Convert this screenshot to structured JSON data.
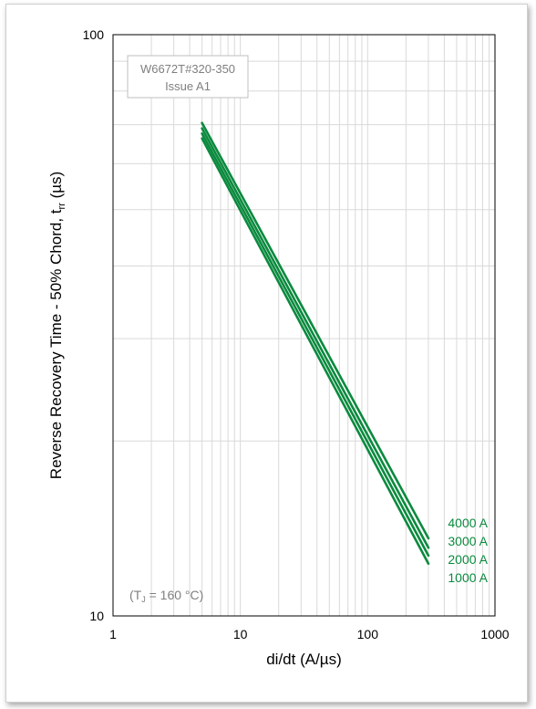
{
  "chart_data": {
    "type": "line",
    "x_scale": "log",
    "y_scale": "log",
    "xlim": [
      1,
      1000
    ],
    "ylim": [
      10,
      100
    ],
    "xlabel": "di/dt (A/µs)",
    "ylabel": {
      "main": "Reverse Recovery Time - 50% Chord, t",
      "sub": "rr",
      "unit": " (µs)"
    },
    "x_ticks": [
      "1",
      "10",
      "100",
      "1000"
    ],
    "y_ticks": [
      "10",
      "100"
    ],
    "grid": true,
    "series_color": "#0a8a3e",
    "series": [
      {
        "name": "4000 A",
        "x": [
          5,
          300
        ],
        "y": [
          70.5,
          13.6
        ]
      },
      {
        "name": "3000 A",
        "x": [
          5,
          300
        ],
        "y": [
          69.0,
          13.1
        ]
      },
      {
        "name": "2000 A",
        "x": [
          5,
          300
        ],
        "y": [
          67.6,
          12.7
        ]
      },
      {
        "name": "1000 A",
        "x": [
          5,
          300
        ],
        "y": [
          66.3,
          12.3
        ]
      }
    ],
    "annotations": {
      "part_number": "W6672T#320-350",
      "issue": "Issue A1",
      "condition": {
        "prefix": "(T",
        "sub": "J",
        "suffix": " = 160 °C)"
      }
    }
  }
}
